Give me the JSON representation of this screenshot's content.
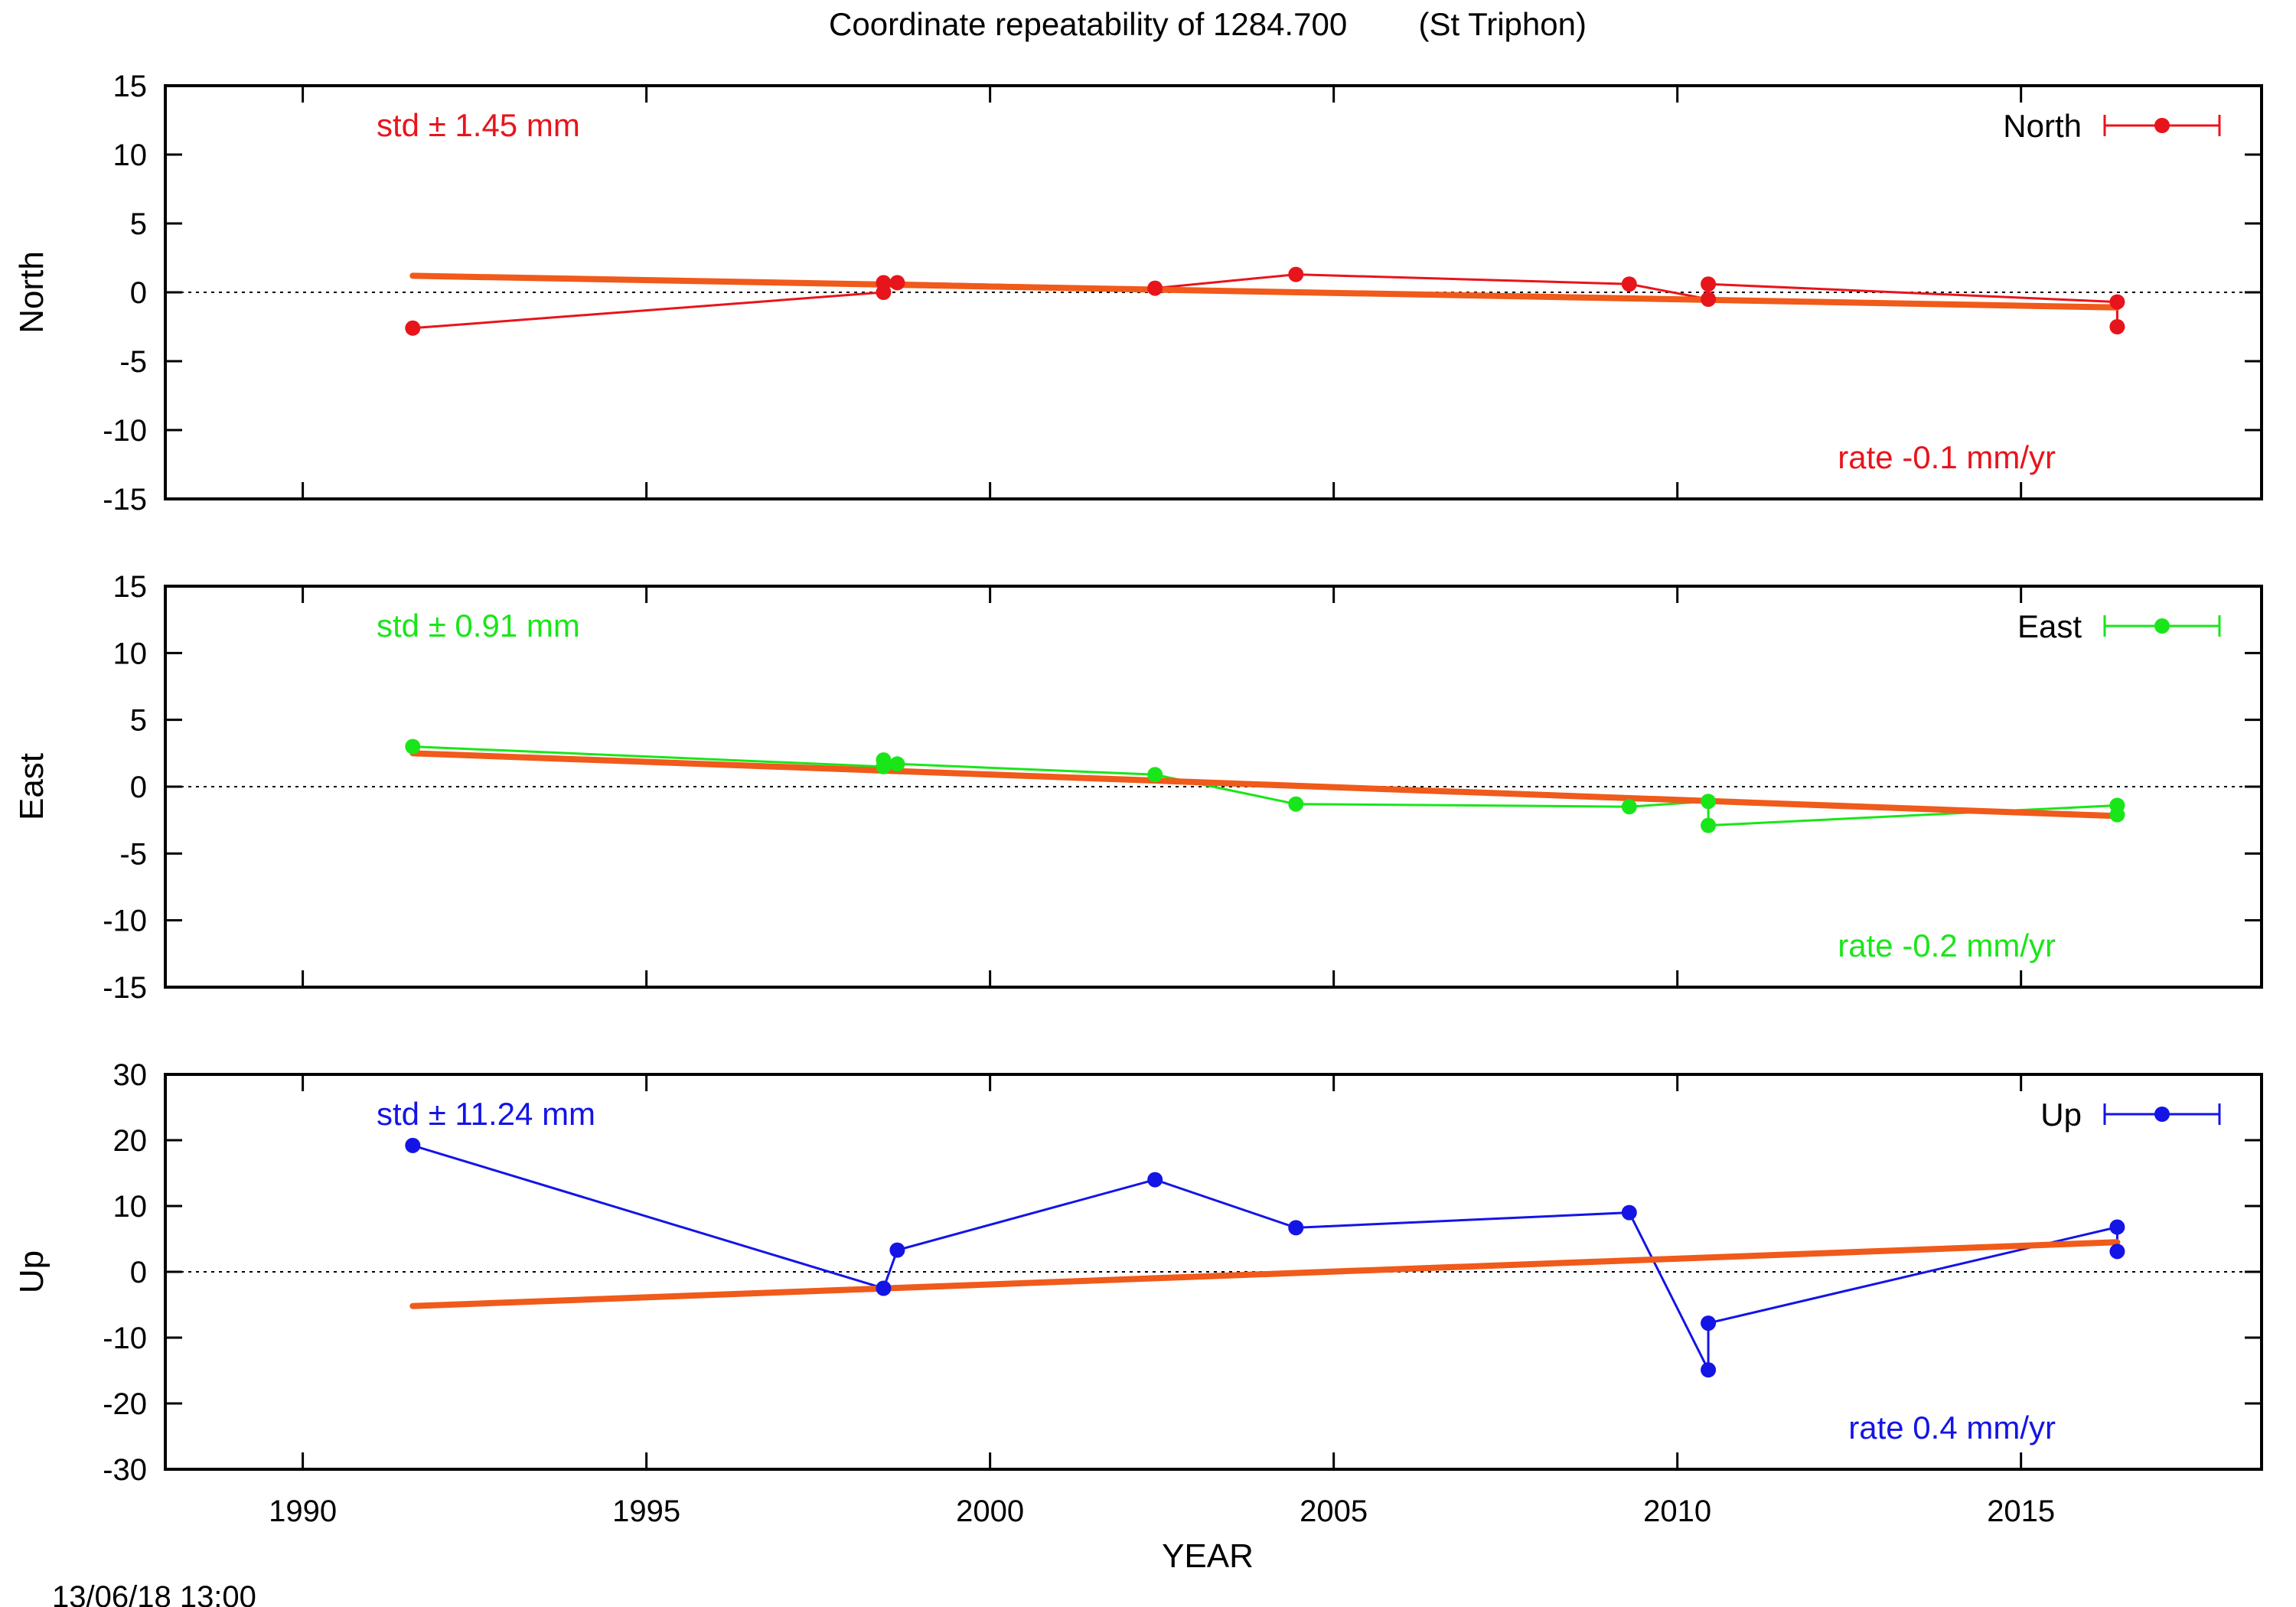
{
  "title": "Coordinate repeatability of 1284.700        (St Triphon)",
  "timestamp": "13/06/18 13:00",
  "xlabel": "YEAR",
  "fit_color": "#f05a1a",
  "chart_data": [
    {
      "type": "line",
      "name": "North",
      "ylabel": "North",
      "legend": "North",
      "color": "#e8141c",
      "std_text": "std ± 1.45 mm",
      "rate_text": "rate -0.1 mm/yr",
      "xlim": [
        1988,
        2018.5
      ],
      "ylim": [
        -15,
        15
      ],
      "yticks": [
        15,
        10,
        5,
        0,
        -5,
        -10,
        -15
      ],
      "xticks": [
        1990,
        1995,
        2000,
        2005,
        2010,
        2015
      ],
      "x": [
        1991.6,
        1998.45,
        1998.45,
        1998.65,
        2002.4,
        2004.45,
        2009.3,
        2010.45,
        2010.45,
        2016.4,
        2016.4
      ],
      "y": [
        -2.6,
        0.0,
        0.7,
        0.7,
        0.3,
        1.3,
        0.6,
        -0.5,
        0.6,
        -0.7,
        -2.5
      ],
      "fit": {
        "x": [
          1991.6,
          2016.4
        ],
        "y": [
          1.2,
          -1.1
        ]
      }
    },
    {
      "type": "line",
      "name": "East",
      "ylabel": "East",
      "legend": "East",
      "color": "#19e619",
      "std_text": "std ± 0.91 mm",
      "rate_text": "rate -0.2 mm/yr",
      "xlim": [
        1988,
        2018.5
      ],
      "ylim": [
        -15,
        15
      ],
      "yticks": [
        15,
        10,
        5,
        0,
        -5,
        -10,
        -15
      ],
      "xticks": [
        1990,
        1995,
        2000,
        2005,
        2010,
        2015
      ],
      "x": [
        1991.6,
        1998.45,
        1998.45,
        1998.65,
        2002.4,
        2004.45,
        2009.3,
        2010.45,
        2010.45,
        2016.4,
        2016.4
      ],
      "y": [
        3.0,
        1.5,
        2.0,
        1.7,
        0.9,
        -1.3,
        -1.5,
        -1.1,
        -2.9,
        -1.4,
        -2.1
      ],
      "fit": {
        "x": [
          1991.6,
          2016.4
        ],
        "y": [
          2.5,
          -2.2
        ]
      }
    },
    {
      "type": "line",
      "name": "Up",
      "ylabel": "Up",
      "legend": "Up",
      "color": "#1414e6",
      "std_text": "std ± 11.24 mm",
      "rate_text": "rate  0.4 mm/yr",
      "xlim": [
        1988,
        2018.5
      ],
      "ylim": [
        -30,
        30
      ],
      "yticks": [
        30,
        20,
        10,
        0,
        -10,
        -20,
        -30
      ],
      "xticks": [
        1990,
        1995,
        2000,
        2005,
        2010,
        2015
      ],
      "x": [
        1991.6,
        1998.45,
        1998.65,
        2002.4,
        2004.45,
        2009.3,
        2010.45,
        2010.45,
        2016.4,
        2016.4
      ],
      "y": [
        19.2,
        -2.5,
        3.3,
        14.0,
        6.7,
        9.0,
        -14.9,
        -7.8,
        6.8,
        3.1
      ],
      "fit": {
        "x": [
          1991.6,
          2016.4
        ],
        "y": [
          -5.2,
          4.5
        ]
      }
    }
  ]
}
